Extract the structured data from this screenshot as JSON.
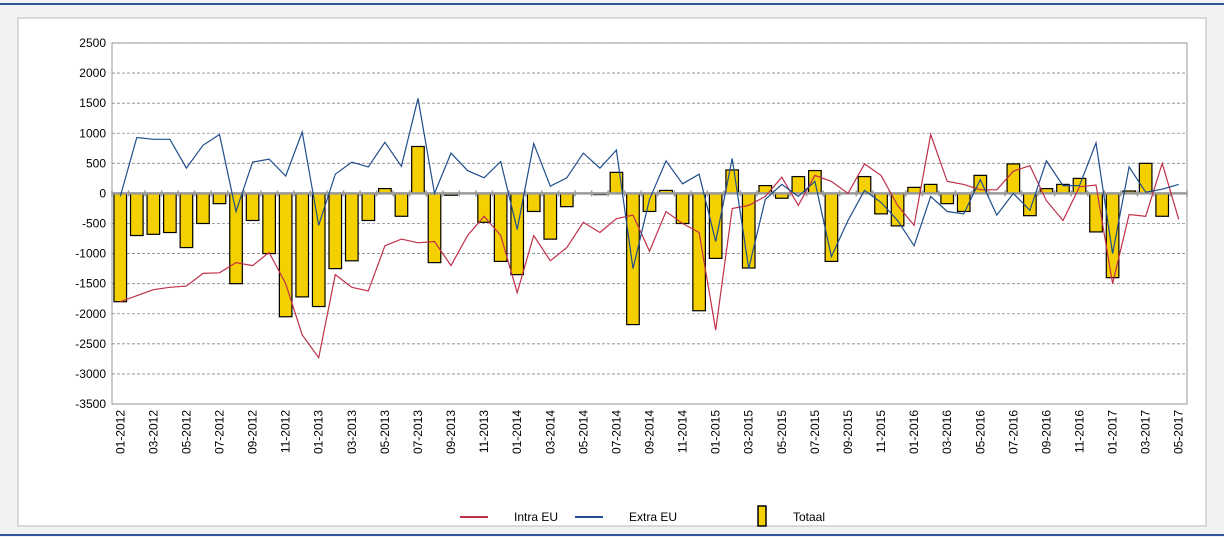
{
  "chart_data": {
    "type": "bar",
    "categories": [
      "01-2012",
      null,
      "03-2012",
      null,
      "05-2012",
      null,
      "07-2012",
      null,
      "09-2012",
      null,
      "11-2012",
      null,
      "01-2013",
      null,
      "03-2013",
      null,
      "05-2013",
      null,
      "07-2013",
      null,
      "09-2013",
      null,
      "11-2013",
      null,
      "01-2014",
      null,
      "03-2014",
      null,
      "05-2014",
      null,
      "07-2014",
      null,
      "09-2014",
      null,
      "11-2014",
      null,
      "01-2015",
      null,
      "03-2015",
      null,
      "05-2015",
      null,
      "07-2015",
      null,
      "09-2015",
      null,
      "11-2015",
      null,
      "01-2016",
      null,
      "03-2016",
      null,
      "05-2016",
      null,
      "07-2016",
      null,
      "09-2016",
      null,
      "11-2016",
      null,
      "01-2017",
      null,
      "03-2017",
      null,
      "05-2017"
    ],
    "series": [
      {
        "name": "Intra EU",
        "type": "line",
        "color": "#c0304a",
        "values": [
          -1800,
          -1700,
          -1600,
          -1560,
          -1540,
          -1330,
          -1320,
          -1150,
          -1200,
          -980,
          -1500,
          -2350,
          -2730,
          -1350,
          -1560,
          -1620,
          -870,
          -760,
          -820,
          -800,
          -1200,
          -700,
          -380,
          -700,
          -1650,
          -700,
          -1120,
          -900,
          -480,
          -650,
          -420,
          -360,
          -960,
          -300,
          -500,
          -650,
          -2270,
          -250,
          -200,
          -50,
          270,
          -200,
          300,
          200,
          0,
          490,
          300,
          -200,
          -530,
          980,
          200,
          150,
          60,
          60,
          370,
          460,
          -120,
          -450,
          110,
          140,
          -1500,
          -350,
          -380,
          500,
          -430
        ]
      },
      {
        "name": "Extra EU",
        "type": "line",
        "color": "#1f4e8c",
        "values": [
          -50,
          930,
          900,
          900,
          420,
          800,
          980,
          -300,
          520,
          570,
          290,
          1020,
          -530,
          320,
          520,
          440,
          850,
          450,
          1580,
          0,
          670,
          380,
          260,
          530,
          -600,
          830,
          120,
          260,
          670,
          420,
          720,
          -1250,
          -100,
          540,
          160,
          320,
          -800,
          580,
          -1250,
          -100,
          150,
          -50,
          200,
          -1050,
          -450,
          50,
          -150,
          -450,
          -870,
          -50,
          -300,
          -340,
          230,
          -360,
          0,
          -280,
          540,
          130,
          130,
          840,
          -1000,
          440,
          20,
          70,
          150
        ]
      },
      {
        "name": "Totaal",
        "type": "bar",
        "color": "#f5d000",
        "values": [
          -1800,
          -700,
          -680,
          -650,
          -900,
          -500,
          -170,
          -1500,
          -450,
          -1000,
          -2050,
          -1720,
          -1880,
          -1250,
          -1120,
          -450,
          80,
          -380,
          780,
          -1150,
          -30,
          0,
          -480,
          -1130,
          -1350,
          -300,
          -760,
          -220,
          0,
          -20,
          350,
          -2180,
          -300,
          50,
          -500,
          -1950,
          -1080,
          390,
          -1240,
          130,
          -80,
          280,
          380,
          -1130,
          0,
          280,
          -340,
          -540,
          100,
          150,
          -170,
          -300,
          300,
          0,
          490,
          -370,
          80,
          150,
          250,
          -640,
          -1400,
          40,
          500,
          -380,
          0
        ]
      }
    ],
    "ylim": [
      -3500,
      2500
    ],
    "yticks": [
      -3500,
      -3000,
      -2500,
      -2000,
      -1500,
      -1000,
      -500,
      0,
      500,
      1000,
      1500,
      2000,
      2500
    ],
    "grid": true,
    "legend": "bottom"
  }
}
